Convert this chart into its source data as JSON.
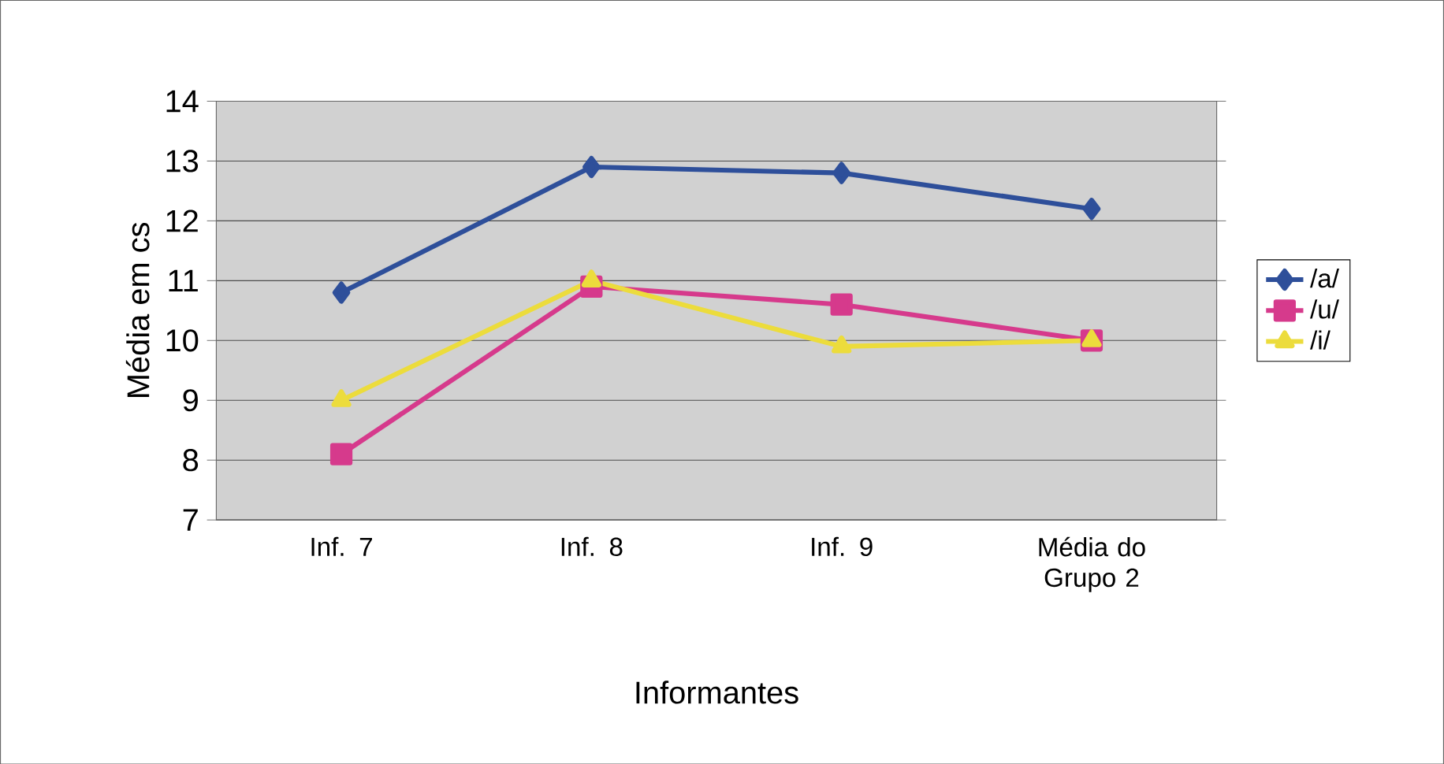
{
  "chart_data": {
    "type": "line",
    "xlabel": "Informantes",
    "ylabel": "Média em cs",
    "categories": [
      "Inf. 7",
      "Inf. 8",
      "Inf. 9",
      "Média do Grupo 2"
    ],
    "series": [
      {
        "name": "/a/",
        "color": "#2e4f9a",
        "marker": "diamond",
        "values": [
          10.8,
          12.9,
          12.8,
          12.2
        ]
      },
      {
        "name": "/u/",
        "color": "#d63a8c",
        "marker": "square",
        "values": [
          8.1,
          10.9,
          10.6,
          10.0
        ]
      },
      {
        "name": "/i/",
        "color": "#ecdc3c",
        "marker": "triangle",
        "values": [
          9.0,
          11.0,
          9.9,
          10.0
        ]
      }
    ],
    "ylim": [
      7,
      14
    ],
    "yticks": [
      7,
      8,
      9,
      10,
      11,
      12,
      13,
      14
    ],
    "grid": "y",
    "legend": "right",
    "line_style": "solid"
  }
}
